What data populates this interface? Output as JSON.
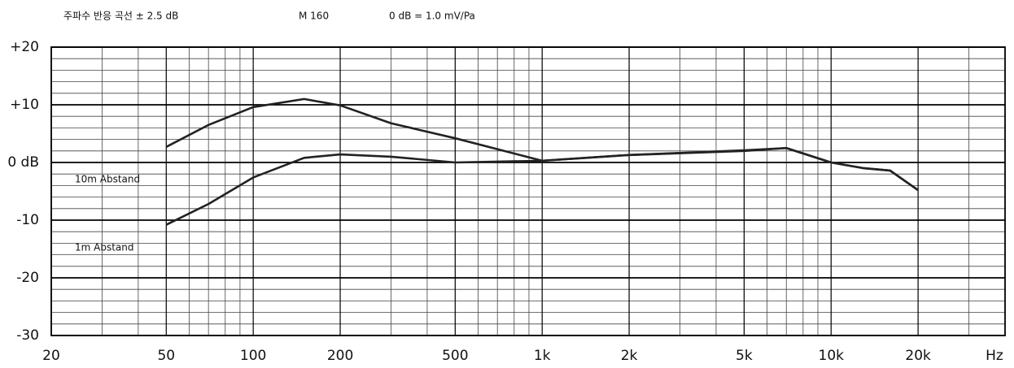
{
  "chart_data": {
    "type": "line",
    "header": [
      "주파수 반응 곡선 ± 2.5 dB",
      "M 160",
      "0 dB = 1.0 mV/Pa"
    ],
    "annotations": [
      "10m Abstand",
      "1m Abstand"
    ],
    "x_label": "Hz",
    "x_scale": "log",
    "xlim": [
      20,
      40000
    ],
    "ylim": [
      -30,
      20
    ],
    "xticks": [
      20,
      50,
      100,
      200,
      500,
      {
        "value": 1000,
        "label": "1k"
      },
      {
        "value": 2000,
        "label": "2k"
      },
      {
        "value": 5000,
        "label": "5k"
      },
      {
        "value": 10000,
        "label": "10k"
      },
      {
        "value": 20000,
        "label": "20k"
      }
    ],
    "yticks": [
      {
        "value": 20,
        "label": "+20"
      },
      {
        "value": 10,
        "label": "+10"
      },
      {
        "value": 0,
        "label": "0 dB"
      },
      -10,
      -20,
      -30
    ],
    "minor_xticks": [
      30,
      40,
      60,
      70,
      80,
      90,
      300,
      400,
      600,
      700,
      800,
      900,
      3000,
      4000,
      6000,
      7000,
      8000,
      9000,
      30000
    ],
    "minor_yticks": [
      -28,
      -26,
      -24,
      -22,
      -18,
      -16,
      -14,
      -12,
      -8,
      -6,
      -4,
      -2,
      2,
      4,
      6,
      8,
      12,
      14,
      16,
      18
    ],
    "grid": true,
    "x": [
      50,
      70,
      100,
      150,
      200,
      300,
      500,
      1000,
      2000,
      5000,
      7000,
      10000,
      13000,
      16000,
      20000
    ],
    "series": [
      {
        "color": "#222222",
        "values": [
          2.7,
          6.5,
          9.6,
          11.0,
          9.9,
          6.8,
          4.2,
          0.3,
          1.3,
          2.1,
          2.5,
          0,
          -1.0,
          -1.4,
          -4.8
        ]
      },
      {
        "color": "#222222",
        "values": [
          -10.8,
          -7.2,
          -2.6,
          0.8,
          1.4,
          1.0,
          0,
          0.3,
          1.3,
          2.0,
          2.5,
          0,
          -1.0,
          -1.4,
          -4.8
        ]
      }
    ]
  }
}
